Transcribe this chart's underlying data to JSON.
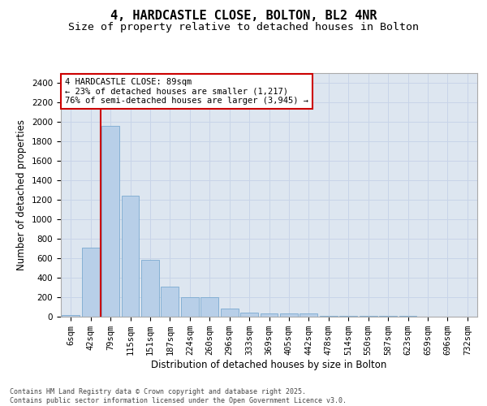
{
  "title_line1": "4, HARDCASTLE CLOSE, BOLTON, BL2 4NR",
  "title_line2": "Size of property relative to detached houses in Bolton",
  "xlabel": "Distribution of detached houses by size in Bolton",
  "ylabel": "Number of detached properties",
  "categories": [
    "6sqm",
    "42sqm",
    "79sqm",
    "115sqm",
    "151sqm",
    "187sqm",
    "224sqm",
    "260sqm",
    "296sqm",
    "333sqm",
    "369sqm",
    "405sqm",
    "442sqm",
    "478sqm",
    "514sqm",
    "550sqm",
    "587sqm",
    "623sqm",
    "659sqm",
    "696sqm",
    "732sqm"
  ],
  "values": [
    15,
    710,
    1960,
    1240,
    580,
    305,
    200,
    200,
    85,
    45,
    35,
    35,
    30,
    12,
    12,
    5,
    5,
    5,
    3,
    2,
    2
  ],
  "bar_color": "#b8cfe8",
  "bar_edge_color": "#7aaad0",
  "red_line_x": 1.5,
  "annotation_text": "4 HARDCASTLE CLOSE: 89sqm\n← 23% of detached houses are smaller (1,217)\n76% of semi-detached houses are larger (3,945) →",
  "annotation_box_color": "#ffffff",
  "annotation_box_edge": "#cc0000",
  "red_line_color": "#cc0000",
  "ylim": [
    0,
    2500
  ],
  "yticks": [
    0,
    200,
    400,
    600,
    800,
    1000,
    1200,
    1400,
    1600,
    1800,
    2000,
    2200,
    2400
  ],
  "grid_color": "#c8d4e8",
  "bg_color": "#dde6f0",
  "footer_text": "Contains HM Land Registry data © Crown copyright and database right 2025.\nContains public sector information licensed under the Open Government Licence v3.0.",
  "title_fontsize": 11,
  "subtitle_fontsize": 9.5,
  "tick_fontsize": 7.5,
  "label_fontsize": 8.5,
  "annotation_fontsize": 7.5
}
